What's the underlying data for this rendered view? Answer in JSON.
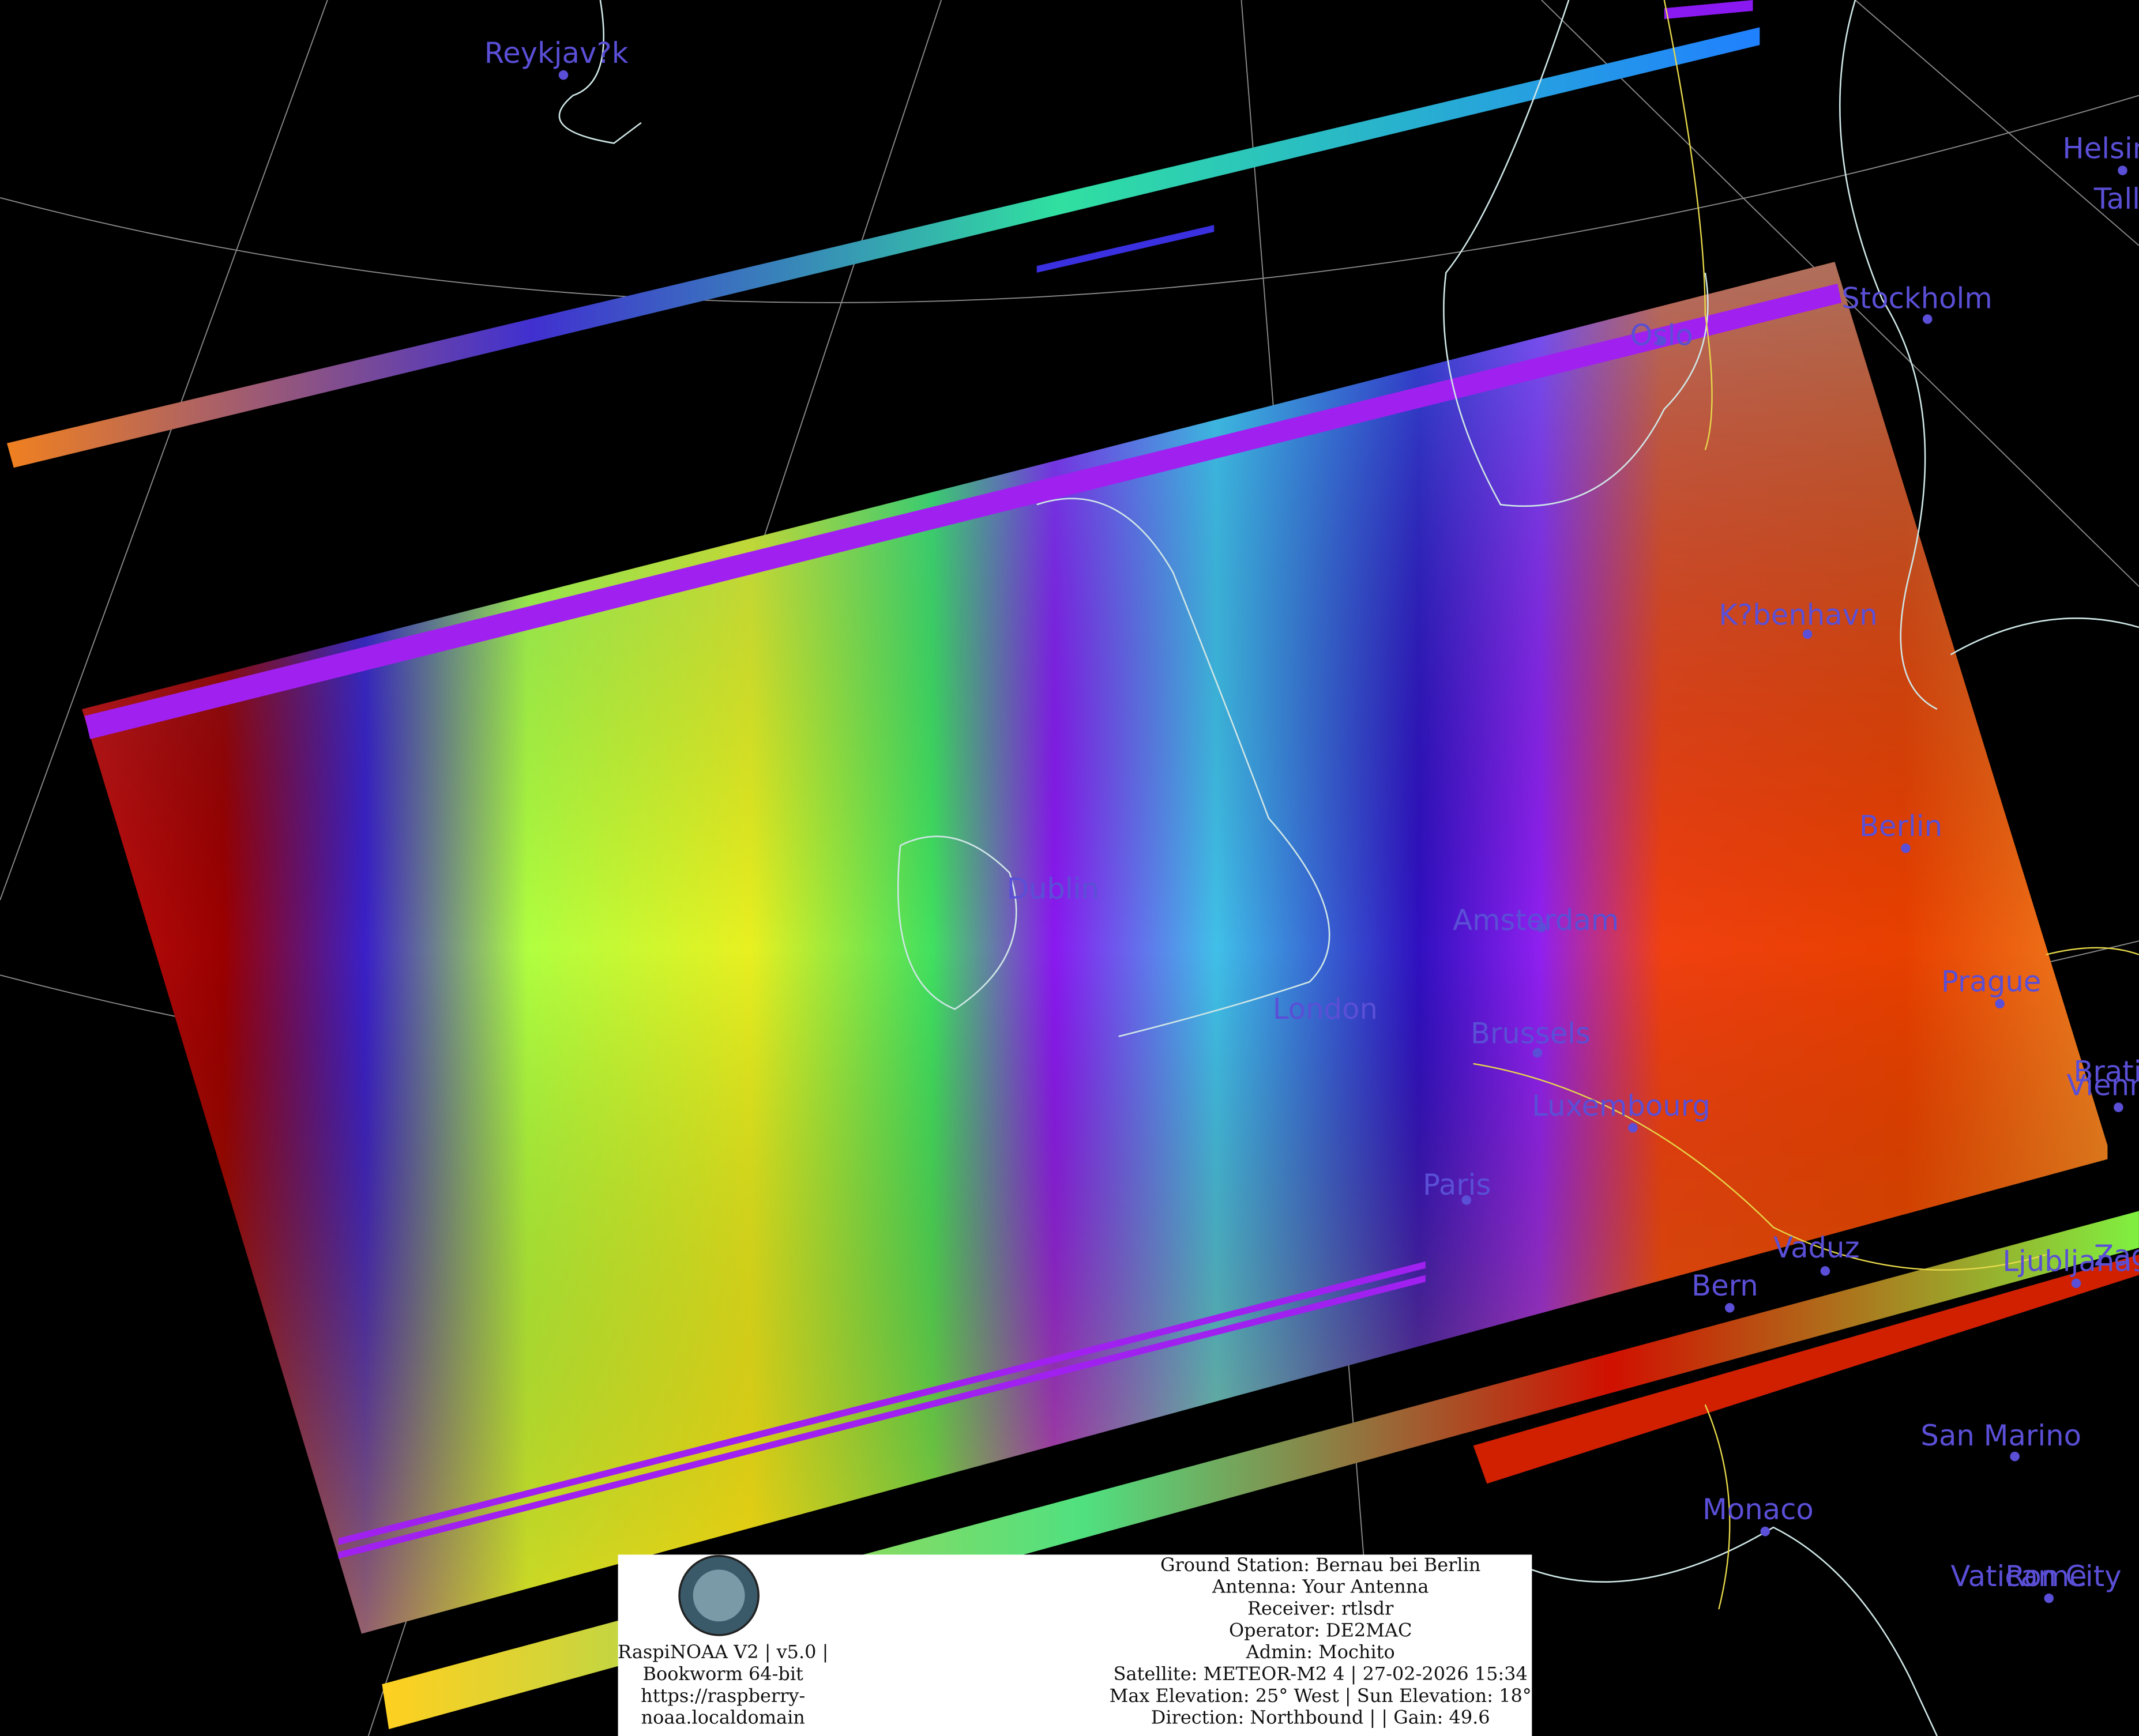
{
  "cities": [
    "Reykjav?k",
    "Helsinki",
    "Tallinn",
    "Stockholm",
    "Oslo",
    "K?benhavn",
    "Berlin",
    "Dublin",
    "Amsterdam",
    "London",
    "Brussels",
    "Luxembourg",
    "Paris",
    "Prague",
    "Vienna",
    "Bratislava",
    "Vaduz",
    "Bern",
    "Ljubljana",
    "Zagreb",
    "San Marino",
    "Monaco",
    "Vatican City",
    "Rome"
  ],
  "info": {
    "left": [
      "RaspiNOAA V2 | v5.0 |",
      "Bookworm 64-bit",
      "https://raspberry-",
      "noaa.localdomain"
    ],
    "right": [
      "Ground Station: Bernau bei Berlin",
      "Antenna: Your Antenna",
      "Receiver: rtlsdr",
      "Operator: DE2MAC",
      "Admin: Mochito",
      "Satellite: METEOR-M2 4 | 27-02-2026 15:34",
      "Max Elevation: 25° West | Sun Elevation: 18°",
      "Direction: Northbound | | Gain: 49.6"
    ]
  }
}
